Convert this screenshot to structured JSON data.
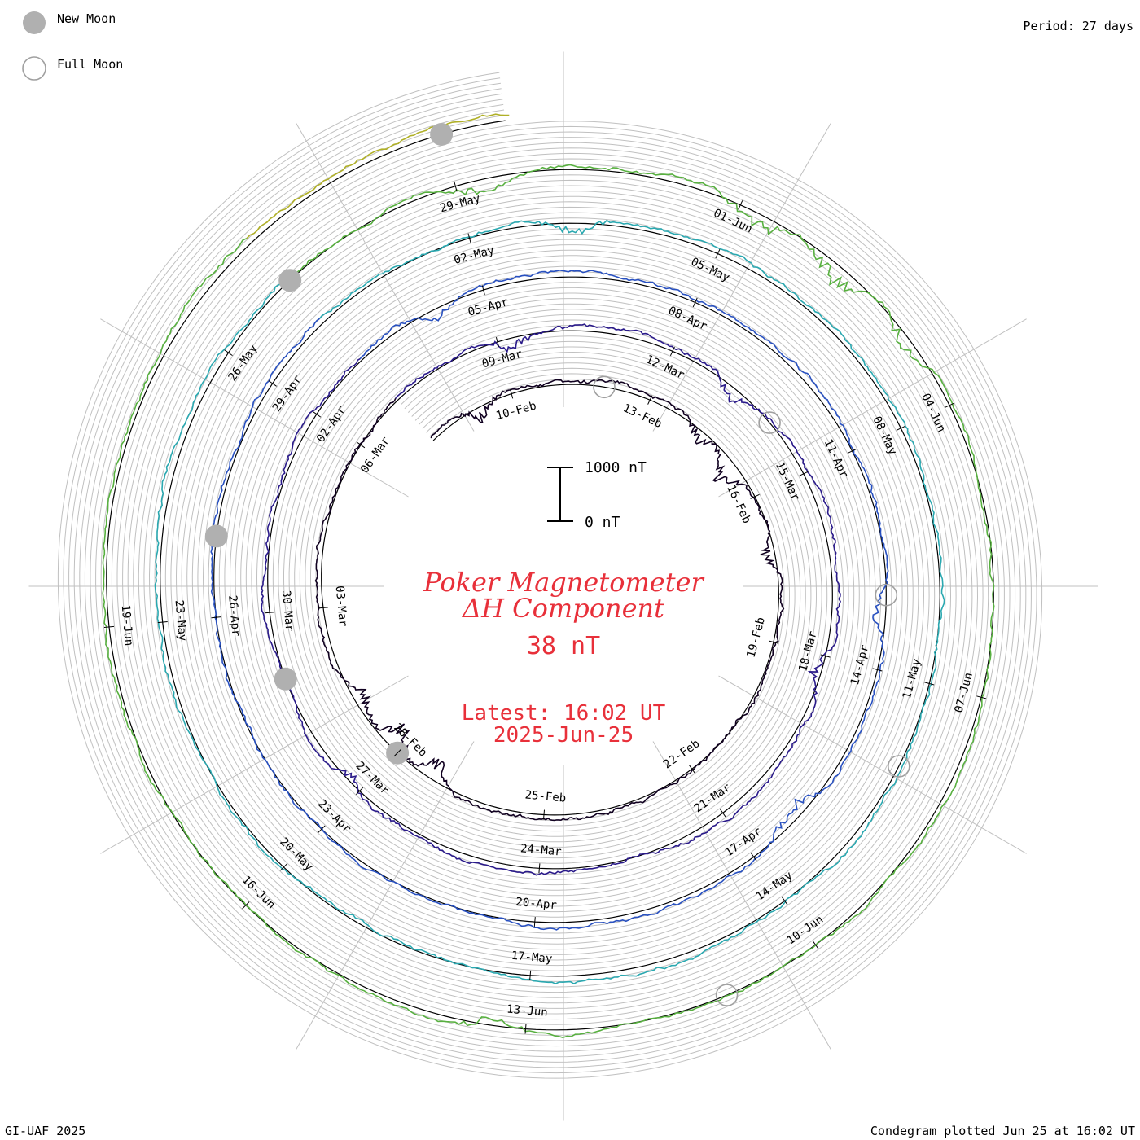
{
  "legend": {
    "new_moon_label": "New Moon",
    "full_moon_label": "Full Moon"
  },
  "period_label": "Period: 27 days",
  "footer_left": "GI-UAF 2025",
  "footer_right": "Condegram plotted Jun 25 at 16:02 UT",
  "scale_bar": {
    "top_label": "1000 nT",
    "bottom_label": "0 nT"
  },
  "center": {
    "title_line1": "Poker Magnetometer",
    "title_line2": "ΔH Component",
    "value_label": "38 nT",
    "latest_label": "Latest: 16:02 UT",
    "latest_date": "2025-Jun-25"
  },
  "colors": {
    "grid": "#c0c0c0",
    "baseline": "#000000",
    "title_red": "#e8303a",
    "moon_fill": "#b0b0b0",
    "moon_edge": "#a0a0a0"
  },
  "chart_data": {
    "type": "line",
    "form": "spiral condegram",
    "start_date": "2025-02-08",
    "end_date": "2025-06-25",
    "period_days": 27,
    "date_labels": [
      "10-Feb",
      "13-Feb",
      "16-Feb",
      "19-Feb",
      "22-Feb",
      "25-Feb",
      "28-Feb",
      "03-Mar",
      "06-Mar",
      "09-Mar",
      "12-Mar",
      "15-Mar",
      "18-Mar",
      "21-Mar",
      "24-Mar",
      "27-Mar",
      "30-Mar",
      "02-Apr",
      "05-Apr",
      "08-Apr",
      "11-Apr",
      "14-Apr",
      "17-Apr",
      "20-Apr",
      "23-Apr",
      "26-Apr",
      "29-Apr",
      "02-May",
      "05-May",
      "08-May",
      "11-May",
      "14-May",
      "17-May",
      "20-May",
      "23-May",
      "26-May",
      "29-May",
      "01-Jun",
      "04-Jun",
      "07-Jun",
      "10-Jun",
      "13-Jun",
      "16-Jun",
      "19-Jun"
    ],
    "new_moons": [
      "2025-02-28",
      "2025-03-29",
      "2025-04-27",
      "2025-05-27",
      "2025-06-25"
    ],
    "full_moons": [
      "2025-02-12",
      "2025-03-14",
      "2025-04-13",
      "2025-05-12",
      "2025-06-11"
    ],
    "series_colors": [
      "#100020",
      "#2a1a8a",
      "#2850c0",
      "#2aa8b0",
      "#58b040",
      "#b0b028",
      "#c08010",
      "#b83010"
    ],
    "latest_value_nT": 38,
    "activity_events_nT": [
      {
        "date": "2025-02-09",
        "peak": 420
      },
      {
        "date": "2025-02-14",
        "peak": 380
      },
      {
        "date": "2025-02-15",
        "peak": 520
      },
      {
        "date": "2025-02-17",
        "peak": 300
      },
      {
        "date": "2025-02-27",
        "peak": 480
      },
      {
        "date": "2025-02-28",
        "peak": 600
      },
      {
        "date": "2025-03-01",
        "peak": 350
      },
      {
        "date": "2025-03-09",
        "peak": 300
      },
      {
        "date": "2025-03-13",
        "peak": 380
      },
      {
        "date": "2025-03-18",
        "peak": 250
      },
      {
        "date": "2025-03-27",
        "peak": 260
      },
      {
        "date": "2025-04-04",
        "peak": 300
      },
      {
        "date": "2025-04-13",
        "peak": 330
      },
      {
        "date": "2025-04-16",
        "peak": 420
      },
      {
        "date": "2025-05-03",
        "peak": 300
      },
      {
        "date": "2025-05-29",
        "peak": 280
      },
      {
        "date": "2025-06-01",
        "peak": 420
      },
      {
        "date": "2025-06-02",
        "peak": 480
      },
      {
        "date": "2025-06-03",
        "peak": 400
      },
      {
        "date": "2025-06-13",
        "peak": 300
      }
    ]
  }
}
